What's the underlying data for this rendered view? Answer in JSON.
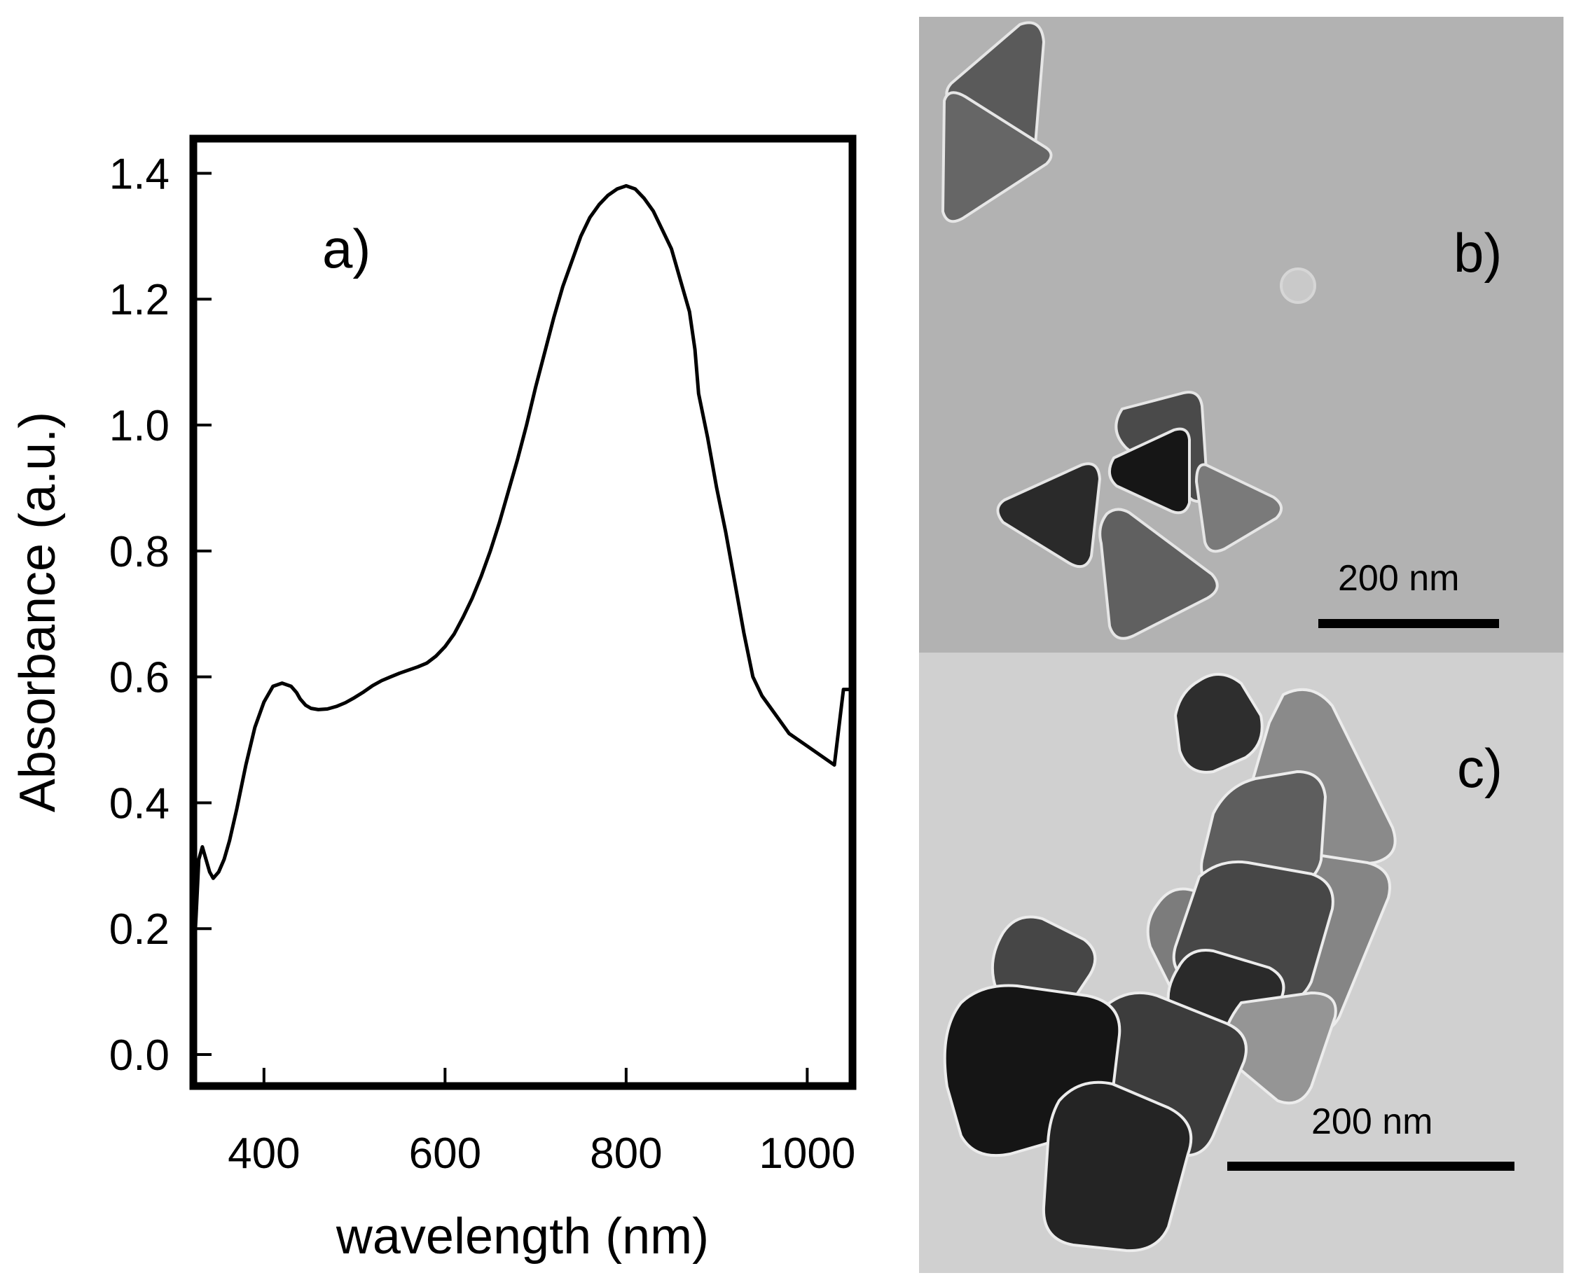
{
  "chart_data": {
    "type": "line",
    "panel_label": "a)",
    "xlabel": "wavelength (nm)",
    "ylabel": "Absorbance (a.u.)",
    "xlim": [
      322,
      1050
    ],
    "ylim": [
      -0.05,
      1.455
    ],
    "xticks": [
      400,
      600,
      800,
      1000
    ],
    "xtick_labels": [
      "400",
      "600",
      "800",
      "1000"
    ],
    "yticks": [
      0.0,
      0.2,
      0.4,
      0.6,
      0.8,
      1.0,
      1.2,
      1.4
    ],
    "ytick_labels": [
      "0.0",
      "0.2",
      "0.4",
      "0.6",
      "0.8",
      "1.0",
      "1.2",
      "1.4"
    ],
    "grid": false,
    "series": [
      {
        "line_color": "#000000",
        "x": [
          322,
          325,
          328,
          332,
          336,
          340,
          344,
          350,
          356,
          362,
          370,
          380,
          390,
          400,
          410,
          420,
          430,
          436,
          440,
          446,
          452,
          460,
          470,
          480,
          490,
          500,
          510,
          520,
          530,
          540,
          550,
          560,
          570,
          580,
          590,
          600,
          610,
          620,
          630,
          640,
          650,
          660,
          670,
          680,
          690,
          700,
          710,
          720,
          730,
          740,
          750,
          760,
          770,
          780,
          790,
          800,
          810,
          820,
          830,
          840,
          850,
          860,
          870,
          876,
          880,
          890,
          900,
          910,
          920,
          930,
          940,
          950,
          960,
          970,
          980,
          990,
          1000,
          1010,
          1020,
          1030,
          1040,
          1050
        ],
        "y": [
          0.14,
          0.22,
          0.31,
          0.33,
          0.31,
          0.29,
          0.28,
          0.29,
          0.31,
          0.34,
          0.39,
          0.46,
          0.52,
          0.56,
          0.585,
          0.59,
          0.585,
          0.575,
          0.565,
          0.555,
          0.55,
          0.548,
          0.549,
          0.553,
          0.559,
          0.567,
          0.576,
          0.586,
          0.594,
          0.6,
          0.606,
          0.611,
          0.616,
          0.622,
          0.633,
          0.648,
          0.668,
          0.695,
          0.725,
          0.76,
          0.8,
          0.845,
          0.895,
          0.945,
          1.0,
          1.06,
          1.115,
          1.17,
          1.22,
          1.26,
          1.3,
          1.33,
          1.35,
          1.365,
          1.375,
          1.38,
          1.375,
          1.36,
          1.34,
          1.31,
          1.28,
          1.23,
          1.18,
          1.12,
          1.05,
          0.98,
          0.9,
          0.83,
          0.75,
          0.67,
          0.6,
          0.57,
          0.55,
          0.53,
          0.51,
          0.5,
          0.49,
          0.48,
          0.47,
          0.46,
          0.58,
          0.58
        ]
      }
    ]
  },
  "panel_b": {
    "label": "b)",
    "scale_text": "200 nm"
  },
  "panel_c": {
    "label": "c)",
    "scale_text": "200 nm"
  }
}
